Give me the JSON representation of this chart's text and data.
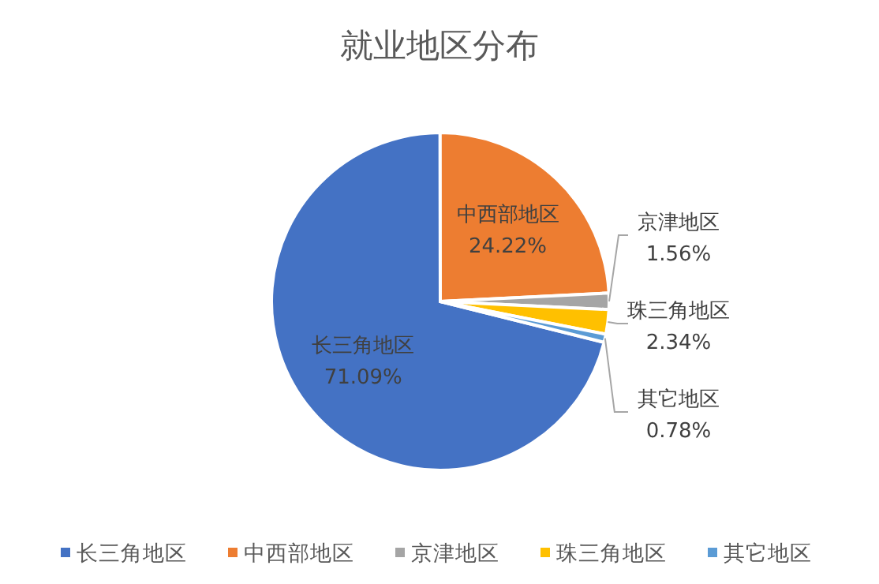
{
  "chart_data": {
    "type": "pie",
    "title": "就业地区分布",
    "categories": [
      "长三角地区",
      "中西部地区",
      "京津地区",
      "珠三角地区",
      "其它地区"
    ],
    "values": [
      71.09,
      24.22,
      1.56,
      2.34,
      0.78
    ],
    "value_labels": [
      "71.09%",
      "24.22%",
      "1.56%",
      "2.34%",
      "0.78%"
    ],
    "colors": [
      "#4472c4",
      "#ed7d31",
      "#a5a5a5",
      "#ffc000",
      "#5b9bd5"
    ],
    "legend": "bottom"
  }
}
